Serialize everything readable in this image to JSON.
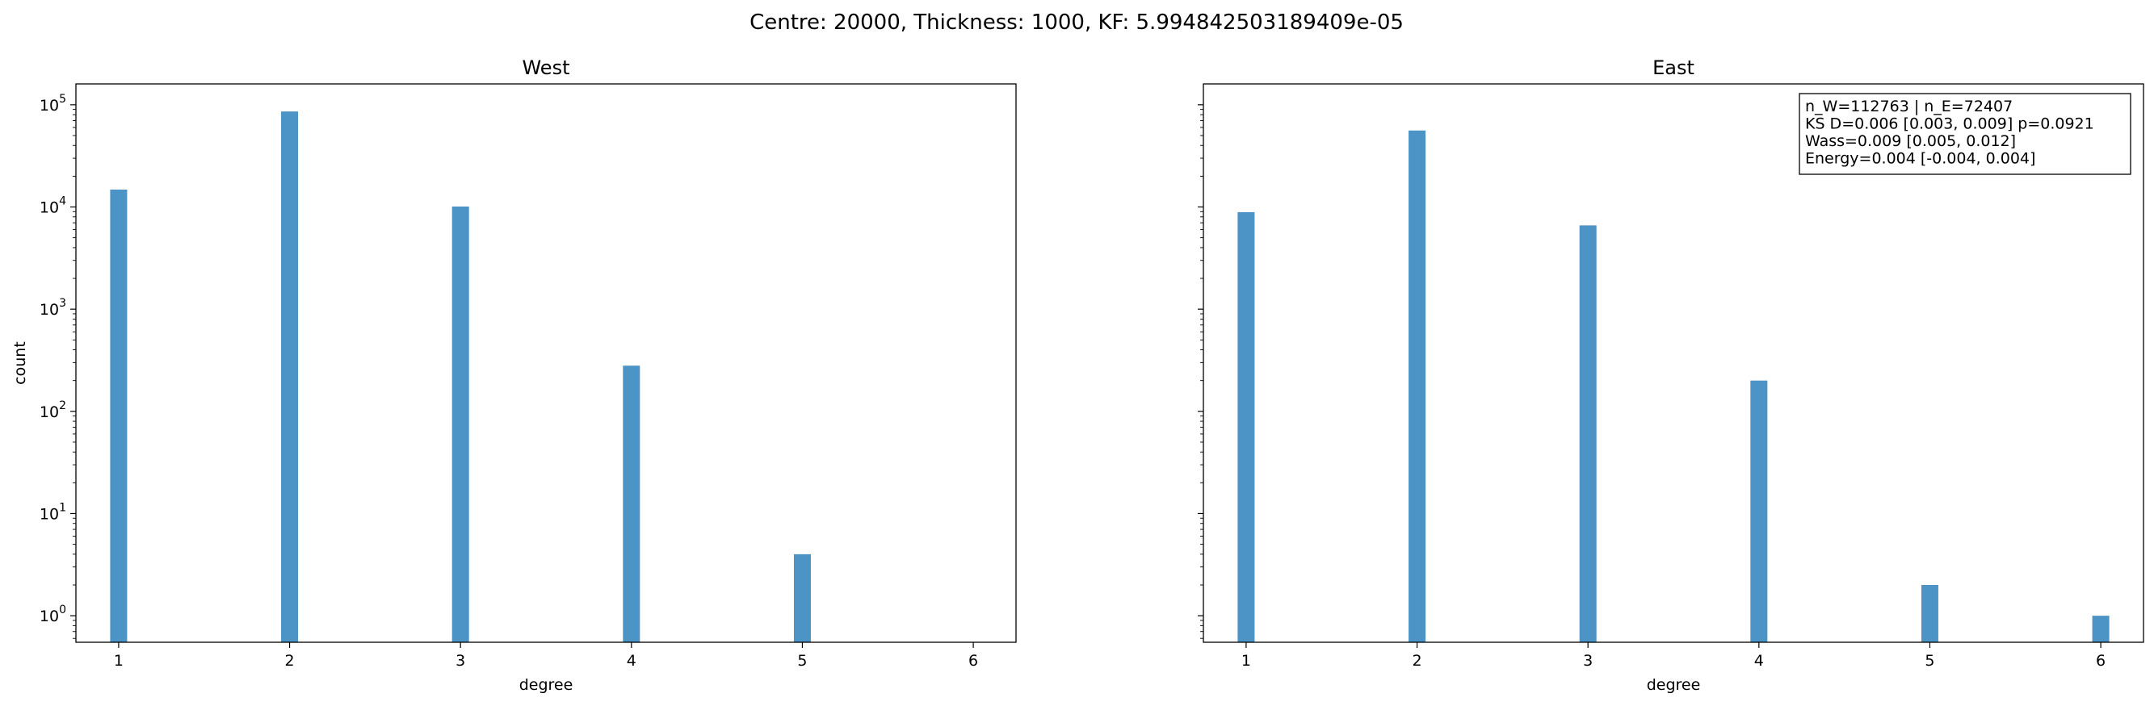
{
  "figure": {
    "suptitle": "Centre: 20000, Thickness: 1000, KF: 5.994842503189409e-05",
    "bar_color": "#4c93c6"
  },
  "chart_data": [
    {
      "type": "bar",
      "title": "West",
      "xlabel": "degree",
      "ylabel": "count",
      "yscale": "log",
      "ylim": [
        0.55,
        160000
      ],
      "xlim": [
        0.75,
        6.25
      ],
      "xticks": [
        "1",
        "2",
        "3",
        "4",
        "5",
        "6"
      ],
      "ytick_values": [
        1,
        10,
        100,
        1000,
        10000,
        100000
      ],
      "ytick_labels": [
        {
          "base": "10",
          "exp": "0"
        },
        {
          "base": "10",
          "exp": "1"
        },
        {
          "base": "10",
          "exp": "2"
        },
        {
          "base": "10",
          "exp": "3"
        },
        {
          "base": "10",
          "exp": "4"
        },
        {
          "base": "10",
          "exp": "5"
        }
      ],
      "x": [
        1,
        2,
        3,
        4,
        5
      ],
      "values": [
        14800,
        86000,
        10100,
        280,
        4
      ]
    },
    {
      "type": "bar",
      "title": "East",
      "xlabel": "degree",
      "ylabel": "",
      "yscale": "log",
      "ylim": [
        0.55,
        160000
      ],
      "xlim": [
        0.75,
        6.25
      ],
      "xticks": [
        "1",
        "2",
        "3",
        "4",
        "5",
        "6"
      ],
      "ytick_values": [
        1,
        10,
        100,
        1000,
        10000,
        100000
      ],
      "x": [
        1,
        2,
        3,
        4,
        5,
        6
      ],
      "values": [
        8900,
        56000,
        6600,
        200,
        2,
        1
      ],
      "annotation": [
        "n_W=112763 | n_E=72407",
        "KS D=0.006 [0.003, 0.009]  p=0.0921",
        "Wass=0.009 [0.005, 0.012]",
        "Energy=0.004 [-0.004, 0.004]"
      ]
    }
  ]
}
